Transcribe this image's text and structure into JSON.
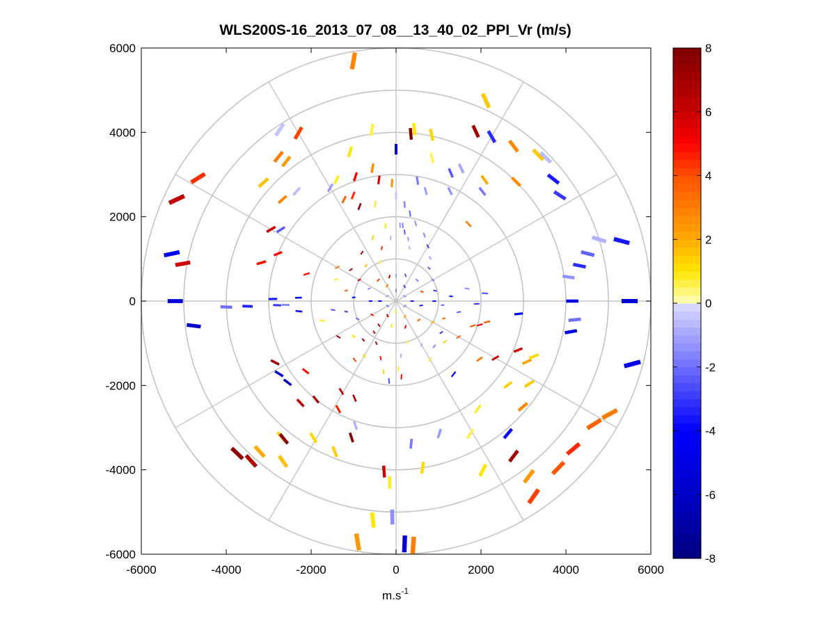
{
  "chart_data": {
    "type": "polar-scatter",
    "title": "WLS200S-16_2013_07_08__13_40_02_PPI_Vr (m/s)",
    "xlabel_base": "m.s",
    "xlabel_sup": "-1",
    "ylabel": "",
    "xlim": [
      -6000,
      6000
    ],
    "ylim": [
      -6000,
      6000
    ],
    "xticks": [
      "-6000",
      "-4000",
      "-2000",
      "0",
      "2000",
      "4000",
      "6000"
    ],
    "yticks": [
      "6000",
      "4000",
      "2000",
      "0",
      "-2000",
      "-4000",
      "-6000"
    ],
    "grid_rings": [
      1000,
      2000,
      3000,
      4000,
      5000,
      6000
    ],
    "grid_spokes_deg": [
      0,
      30,
      60,
      90,
      120,
      150,
      180,
      210,
      240,
      270,
      300,
      330
    ],
    "colorbar": {
      "min": -8,
      "max": 8,
      "ticks": [
        "8",
        "6",
        "4",
        "2",
        "0",
        "-2",
        "-4",
        "-6",
        "-8"
      ],
      "colormap": "blue-white-yellow-red"
    },
    "points": [
      {
        "r": 5780,
        "az": -10,
        "v": 2.8
      },
      {
        "r": 5200,
        "az": 24,
        "v": 1.5
      },
      {
        "r": 4440,
        "az": 25,
        "v": 7.0
      },
      {
        "r": 4500,
        "az": 30,
        "v": -3.2
      },
      {
        "r": 4100,
        "az": 6,
        "v": 1.0
      },
      {
        "r": 4030,
        "az": 12,
        "v": 1.3
      },
      {
        "r": 3980,
        "az": 5,
        "v": 8.0
      },
      {
        "r": 3600,
        "az": 0,
        "v": -6.0
      },
      {
        "r": 3500,
        "az": 14,
        "v": 0.5
      },
      {
        "r": 4600,
        "az": 37,
        "v": 2.8
      },
      {
        "r": 4820,
        "az": 44,
        "v": 1.5
      },
      {
        "r": 4900,
        "az": 46,
        "v": -0.6
      },
      {
        "r": 4700,
        "az": 52,
        "v": -3.6
      },
      {
        "r": 4600,
        "az": 57,
        "v": -3.0
      },
      {
        "r": 4000,
        "az": 45,
        "v": 2.6
      },
      {
        "r": 3550,
        "az": 36,
        "v": 2.0
      },
      {
        "r": 3300,
        "az": 38,
        "v": -1.8
      },
      {
        "r": 3500,
        "az": 26,
        "v": -1.0
      },
      {
        "r": 3300,
        "az": 23,
        "v": -2.4
      },
      {
        "r": 2900,
        "az": 26,
        "v": -1.4
      },
      {
        "r": 2900,
        "az": 10,
        "v": -1.8
      },
      {
        "r": 2700,
        "az": 15,
        "v": -1.2
      },
      {
        "r": 2500,
        "az": 43,
        "v": 3.0
      },
      {
        "r": 5500,
        "az": 75,
        "v": -3.6
      },
      {
        "r": 5000,
        "az": 73,
        "v": -0.8
      },
      {
        "r": 4650,
        "az": 76,
        "v": -2.2
      },
      {
        "r": 4400,
        "az": 79,
        "v": -3.2
      },
      {
        "r": 4100,
        "az": 82,
        "v": -1.4
      },
      {
        "r": 4150,
        "az": 90,
        "v": -5.0
      },
      {
        "r": 5500,
        "az": 90,
        "v": -5.5
      },
      {
        "r": 4230,
        "az": 96,
        "v": -2.0
      },
      {
        "r": 4180,
        "az": 100,
        "v": -4.5
      },
      {
        "r": 5760,
        "az": 105,
        "v": -4.5
      },
      {
        "r": 5700,
        "az": 118,
        "v": 3.0
      },
      {
        "r": 5500,
        "az": 122,
        "v": 3.6
      },
      {
        "r": 5450,
        "az": 130,
        "v": 4.5
      },
      {
        "r": 5500,
        "az": 136,
        "v": 3.8
      },
      {
        "r": 5650,
        "az": 145,
        "v": 4.2
      },
      {
        "r": 5200,
        "az": 143,
        "v": 2.4
      },
      {
        "r": 4600,
        "az": 143,
        "v": 7.0
      },
      {
        "r": 4100,
        "az": 140,
        "v": -4.4
      },
      {
        "r": 3900,
        "az": 130,
        "v": 2.8
      },
      {
        "r": 3700,
        "az": 122,
        "v": 1.5
      },
      {
        "r": 3400,
        "az": 115,
        "v": 2.2
      },
      {
        "r": 3500,
        "az": 112,
        "v": 1.2
      },
      {
        "r": 3100,
        "az": 112,
        "v": 5.8
      },
      {
        "r": 3300,
        "az": 127,
        "v": 1.4
      },
      {
        "r": 2700,
        "az": 120,
        "v": 6.2
      },
      {
        "r": 3200,
        "az": 143,
        "v": 0.8
      },
      {
        "r": 2200,
        "az": 142,
        "v": -4.2
      },
      {
        "r": 2400,
        "az": 125,
        "v": 3.2
      },
      {
        "r": 2200,
        "az": 103,
        "v": 3.8
      },
      {
        "r": 2050,
        "az": 106,
        "v": 5.2
      },
      {
        "r": 1900,
        "az": 108,
        "v": 4.0
      },
      {
        "r": 2900,
        "az": 96,
        "v": -4.0
      },
      {
        "r": 5800,
        "az": 176,
        "v": 3.0
      },
      {
        "r": 5760,
        "az": 178,
        "v": -5.5
      },
      {
        "r": 5120,
        "az": 181,
        "v": -1.4
      },
      {
        "r": 5780,
        "az": 189,
        "v": 2.4
      },
      {
        "r": 5220,
        "az": 186,
        "v": 1.0
      },
      {
        "r": 4300,
        "az": 182,
        "v": 0.8
      },
      {
        "r": 4050,
        "az": 184,
        "v": 6.0
      },
      {
        "r": 4000,
        "az": 171,
        "v": 1.2
      },
      {
        "r": 4500,
        "az": 153,
        "v": 1.0
      },
      {
        "r": 3600,
        "az": 151,
        "v": 0.6
      },
      {
        "r": 3400,
        "az": 174,
        "v": -1.8
      },
      {
        "r": 3300,
        "az": 162,
        "v": -1.2
      },
      {
        "r": 3400,
        "az": 198,
        "v": 7.6
      },
      {
        "r": 3850,
        "az": 202,
        "v": 1.4
      },
      {
        "r": 3100,
        "az": 198,
        "v": -0.8
      },
      {
        "r": 4200,
        "az": 220,
        "v": 1.2
      },
      {
        "r": 3780,
        "az": 211,
        "v": 1.3
      },
      {
        "r": 4200,
        "az": 219,
        "v": 7.6
      },
      {
        "r": 4800,
        "az": 222,
        "v": 2.0
      },
      {
        "r": 5100,
        "az": 222,
        "v": 6.5
      },
      {
        "r": 5200,
        "az": 226,
        "v": 7.6
      },
      {
        "r": 4640,
        "az": 215,
        "v": 1.6
      },
      {
        "r": 3000,
        "az": 219,
        "v": 6.8
      },
      {
        "r": 3300,
        "az": 223,
        "v": 6.0
      },
      {
        "r": 2900,
        "az": 208,
        "v": 4.6
      },
      {
        "r": 2500,
        "az": 211,
        "v": 6.2
      },
      {
        "r": 2500,
        "az": 203,
        "v": 6.8
      },
      {
        "r": 3250,
        "az": 238,
        "v": -5.6
      },
      {
        "r": 3200,
        "az": 233,
        "v": -6.2
      },
      {
        "r": 3200,
        "az": 243,
        "v": 7.2
      },
      {
        "r": 2700,
        "az": 232,
        "v": 5.0
      },
      {
        "r": 5200,
        "az": 270,
        "v": -5.5
      },
      {
        "r": 4800,
        "az": 263,
        "v": -5.8
      },
      {
        "r": 4000,
        "az": 268,
        "v": -2.0
      },
      {
        "r": 3500,
        "az": 268,
        "v": -3.4
      },
      {
        "r": 2800,
        "az": 268,
        "v": -3.0
      },
      {
        "r": 2600,
        "az": 268,
        "v": -1.6
      },
      {
        "r": 2900,
        "az": 271,
        "v": -3.6
      },
      {
        "r": 2300,
        "az": 272,
        "v": -4.5
      },
      {
        "r": 2300,
        "az": 264,
        "v": -4.2
      },
      {
        "r": 2200,
        "az": 287,
        "v": 4.8
      },
      {
        "r": 3000,
        "az": 292,
        "v": 5.0
      },
      {
        "r": 5400,
        "az": 282,
        "v": -4.4
      },
      {
        "r": 5100,
        "az": 280,
        "v": 5.8
      },
      {
        "r": 5700,
        "az": 295,
        "v": 6.2
      },
      {
        "r": 5500,
        "az": 302,
        "v": 4.4
      },
      {
        "r": 3400,
        "az": 300,
        "v": 6.0
      },
      {
        "r": 3300,
        "az": 286,
        "v": 4.8
      },
      {
        "r": 3200,
        "az": 302,
        "v": -2.4
      },
      {
        "r": 4400,
        "az": 321,
        "v": 3.0
      },
      {
        "r": 4200,
        "az": 322,
        "v": 2.4
      },
      {
        "r": 4900,
        "az": 326,
        "v": -0.4
      },
      {
        "r": 4600,
        "az": 330,
        "v": 4.2
      },
      {
        "r": 4200,
        "az": 312,
        "v": 1.6
      },
      {
        "r": 3600,
        "az": 312,
        "v": 2.8
      },
      {
        "r": 3500,
        "az": 318,
        "v": -0.6
      },
      {
        "r": 3100,
        "az": 330,
        "v": -1.2
      },
      {
        "r": 2700,
        "az": 333,
        "v": 3.6
      },
      {
        "r": 2400,
        "az": 339,
        "v": 7.2
      },
      {
        "r": 3100,
        "az": 342,
        "v": 5.0
      },
      {
        "r": 2900,
        "az": 352,
        "v": 5.8
      },
      {
        "r": 3200,
        "az": 350,
        "v": 2.6
      },
      {
        "r": 3700,
        "az": 343,
        "v": 1.0
      },
      {
        "r": 4100,
        "az": 352,
        "v": 0.6
      },
      {
        "r": 2350,
        "az": 348,
        "v": 0.8
      },
      {
        "r": 2700,
        "az": 338,
        "v": 4.5
      },
      {
        "r": 3200,
        "az": 334,
        "v": 0.8
      },
      {
        "r": 2800,
        "az": 358,
        "v": 2.6
      },
      {
        "r": 2500,
        "az": 0,
        "v": -0.5
      },
      {
        "r": 2300,
        "az": 5,
        "v": -1.6
      },
      {
        "r": 2100,
        "az": 9,
        "v": -2.0
      },
      {
        "r": 1900,
        "az": 14,
        "v": -1.4
      },
      {
        "r": 1800,
        "az": 5,
        "v": -1.8
      },
      {
        "r": 1650,
        "az": 7,
        "v": -2.4
      },
      {
        "r": 1500,
        "az": 11,
        "v": -1.2
      },
      {
        "r": 1300,
        "az": 14,
        "v": -0.8
      },
      {
        "r": 1700,
        "az": 23,
        "v": -1.6
      },
      {
        "r": 1500,
        "az": 30,
        "v": -2.8
      },
      {
        "r": 1300,
        "az": 38,
        "v": -1.0
      },
      {
        "r": 1100,
        "az": 45,
        "v": -2.4
      },
      {
        "r": 1000,
        "az": 60,
        "v": -1.6
      },
      {
        "r": 950,
        "az": 75,
        "v": -3.0
      },
      {
        "r": 900,
        "az": 90,
        "v": -4.4
      },
      {
        "r": 1100,
        "az": 95,
        "v": -2.0
      },
      {
        "r": 1300,
        "az": 85,
        "v": -3.6
      },
      {
        "r": 1500,
        "az": 100,
        "v": -2.2
      },
      {
        "r": 1700,
        "az": 80,
        "v": -1.4
      },
      {
        "r": 1900,
        "az": 92,
        "v": -3.0
      },
      {
        "r": 2100,
        "az": 85,
        "v": -2.4
      },
      {
        "r": 1200,
        "az": 110,
        "v": 3.2
      },
      {
        "r": 1000,
        "az": 120,
        "v": 2.0
      },
      {
        "r": 1300,
        "az": 125,
        "v": -3.0
      },
      {
        "r": 1500,
        "az": 130,
        "v": 1.4
      },
      {
        "r": 1700,
        "az": 120,
        "v": 3.6
      },
      {
        "r": 1400,
        "az": 140,
        "v": -1.6
      },
      {
        "r": 1600,
        "az": 150,
        "v": 0.8
      },
      {
        "r": 1200,
        "az": 150,
        "v": -0.8
      },
      {
        "r": 1000,
        "az": 165,
        "v": 0.6
      },
      {
        "r": 1300,
        "az": 175,
        "v": -1.0
      },
      {
        "r": 1600,
        "az": 178,
        "v": 1.0
      },
      {
        "r": 1800,
        "az": 176,
        "v": 5.4
      },
      {
        "r": 1900,
        "az": 185,
        "v": -2.6
      },
      {
        "r": 1700,
        "az": 190,
        "v": 1.2
      },
      {
        "r": 1400,
        "az": 195,
        "v": 5.0
      },
      {
        "r": 1100,
        "az": 205,
        "v": 6.2
      },
      {
        "r": 900,
        "az": 215,
        "v": 5.6
      },
      {
        "r": 1200,
        "az": 220,
        "v": 7.0
      },
      {
        "r": 1500,
        "az": 210,
        "v": 1.2
      },
      {
        "r": 1700,
        "az": 215,
        "v": 4.2
      },
      {
        "r": 1300,
        "az": 230,
        "v": 1.0
      },
      {
        "r": 1600,
        "az": 238,
        "v": 6.8
      },
      {
        "r": 1000,
        "az": 245,
        "v": -2.2
      },
      {
        "r": 1200,
        "az": 258,
        "v": -3.0
      },
      {
        "r": 1500,
        "az": 262,
        "v": -2.6
      },
      {
        "r": 1800,
        "az": 255,
        "v": 0.8
      },
      {
        "r": 1000,
        "az": 275,
        "v": -4.0
      },
      {
        "r": 1200,
        "az": 282,
        "v": 3.6
      },
      {
        "r": 1500,
        "az": 290,
        "v": 0.8
      },
      {
        "r": 1000,
        "az": 300,
        "v": 5.6
      },
      {
        "r": 1300,
        "az": 305,
        "v": 6.4
      },
      {
        "r": 1600,
        "az": 300,
        "v": 3.2
      },
      {
        "r": 1100,
        "az": 320,
        "v": 1.8
      },
      {
        "r": 1400,
        "az": 325,
        "v": 7.2
      },
      {
        "r": 1000,
        "az": 338,
        "v": 0.8
      },
      {
        "r": 1300,
        "az": 345,
        "v": 4.4
      },
      {
        "r": 1600,
        "az": 340,
        "v": 1.4
      },
      {
        "r": 1800,
        "az": 352,
        "v": 1.0
      },
      {
        "r": 1500,
        "az": 355,
        "v": -0.8
      },
      {
        "r": 1800,
        "az": 3,
        "v": -1.2
      },
      {
        "r": 600,
        "az": 0,
        "v": -1.2
      },
      {
        "r": 650,
        "az": 20,
        "v": -2.4
      },
      {
        "r": 700,
        "az": 45,
        "v": -1.6
      },
      {
        "r": 650,
        "az": 70,
        "v": 4.0
      },
      {
        "r": 600,
        "az": 100,
        "v": -3.6
      },
      {
        "r": 700,
        "az": 130,
        "v": 3.4
      },
      {
        "r": 650,
        "az": 160,
        "v": 5.2
      },
      {
        "r": 600,
        "az": 190,
        "v": 1.0
      },
      {
        "r": 700,
        "az": 215,
        "v": 6.0
      },
      {
        "r": 650,
        "az": 240,
        "v": 4.6
      },
      {
        "r": 600,
        "az": 270,
        "v": -4.0
      },
      {
        "r": 700,
        "az": 295,
        "v": -1.4
      },
      {
        "r": 650,
        "az": 320,
        "v": 4.2
      },
      {
        "r": 600,
        "az": 345,
        "v": 6.6
      },
      {
        "r": 400,
        "az": 30,
        "v": -2.8
      },
      {
        "r": 380,
        "az": 90,
        "v": -3.6
      },
      {
        "r": 420,
        "az": 150,
        "v": 2.2
      },
      {
        "r": 400,
        "az": 210,
        "v": 5.8
      },
      {
        "r": 380,
        "az": 270,
        "v": -4.2
      },
      {
        "r": 420,
        "az": 330,
        "v": 3.0
      },
      {
        "r": 250,
        "az": 0,
        "v": -1.6
      },
      {
        "r": 230,
        "az": 60,
        "v": -1.2
      },
      {
        "r": 240,
        "az": 120,
        "v": -1.4
      },
      {
        "r": 250,
        "az": 180,
        "v": 0.8
      },
      {
        "r": 230,
        "az": 240,
        "v": -1.8
      },
      {
        "r": 240,
        "az": 300,
        "v": -1.0
      }
    ]
  }
}
